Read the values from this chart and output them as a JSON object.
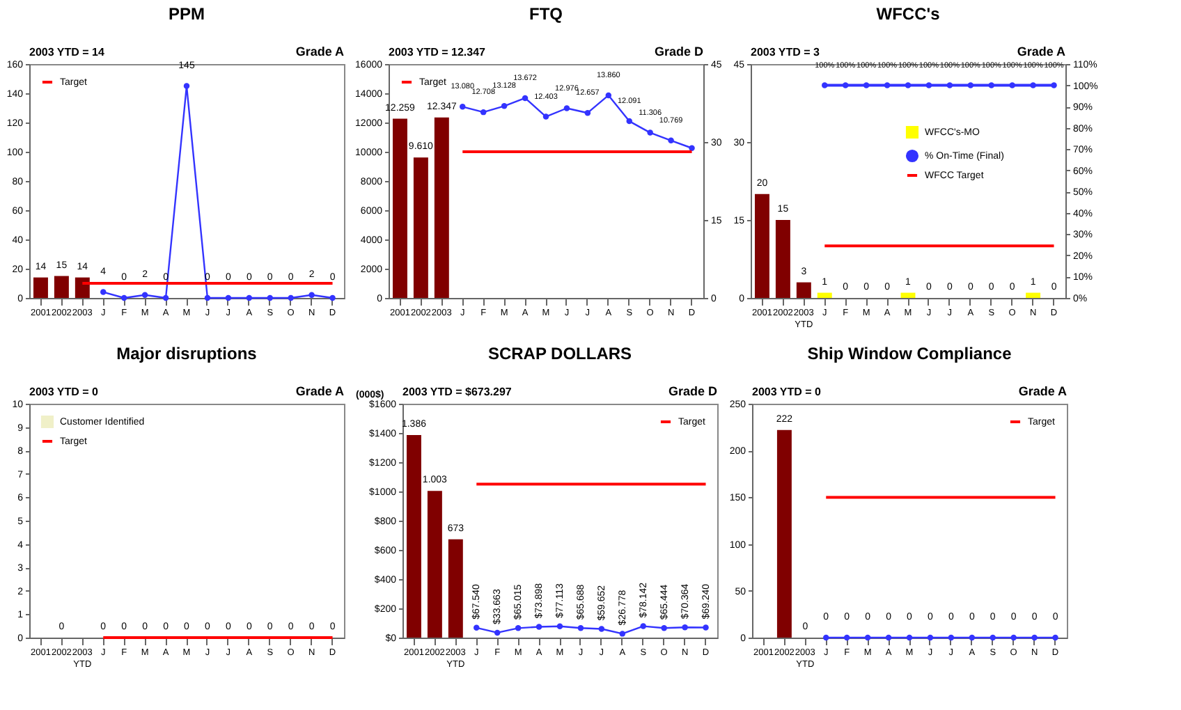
{
  "chart_data": [
    {
      "type": "bar",
      "title": "PPM",
      "annotations": [
        "2003 YTD = 14",
        "Grade A"
      ],
      "categories": [
        "2001",
        "2002",
        "2003",
        "J",
        "F",
        "M",
        "A",
        "M",
        "J",
        "J",
        "A",
        "S",
        "O",
        "N",
        "D"
      ],
      "ylim": [
        0,
        160
      ],
      "yticks": [
        0,
        20,
        40,
        60,
        80,
        100,
        120,
        140,
        160
      ],
      "legend": "top left",
      "series": [
        {
          "type": "bar",
          "color": "#800000",
          "values": [
            14,
            15,
            14,
            null,
            null,
            null,
            null,
            null,
            null,
            null,
            null,
            null,
            null,
            null,
            null
          ],
          "value_labels": [
            "14",
            "15",
            "14",
            null,
            null,
            null,
            null,
            null,
            null,
            null,
            null,
            null,
            null,
            null,
            null
          ]
        },
        {
          "type": "line",
          "color": "#3333ff",
          "marker": "circle",
          "values": [
            null,
            null,
            null,
            4,
            0,
            2,
            0,
            145,
            0,
            0,
            0,
            0,
            0,
            2,
            0
          ],
          "value_labels": [
            null,
            null,
            null,
            "4",
            "0",
            "2",
            "0",
            "145",
            "0",
            "0",
            "0",
            "0",
            "0",
            "2",
            "0"
          ]
        },
        {
          "name": "Target",
          "type": "line",
          "color": "#ff0000",
          "marker": "none",
          "values": [
            null,
            null,
            10,
            10,
            10,
            10,
            10,
            10,
            10,
            10,
            10,
            10,
            10,
            10,
            10
          ]
        }
      ]
    },
    {
      "type": "bar",
      "title": "FTQ",
      "annotations": [
        "2003 YTD = 12.347",
        "Grade D"
      ],
      "categories": [
        "2001",
        "2002",
        "2003",
        "J",
        "F",
        "M",
        "A",
        "M",
        "J",
        "J",
        "A",
        "S",
        "O",
        "N",
        "D"
      ],
      "ylim": [
        0,
        16000
      ],
      "yticks": [
        0,
        2000,
        4000,
        6000,
        8000,
        10000,
        12000,
        14000,
        16000
      ],
      "y2lim": [
        0,
        45
      ],
      "y2ticks": [
        0,
        15,
        30,
        45
      ],
      "legend": "top left",
      "series": [
        {
          "type": "bar",
          "color": "#800000",
          "values": [
            12259,
            9610,
            12347,
            null,
            null,
            null,
            null,
            null,
            null,
            null,
            null,
            null,
            null,
            null,
            null
          ],
          "value_labels": [
            "12.259",
            "9.610",
            "12.347",
            null,
            null,
            null,
            null,
            null,
            null,
            null,
            null,
            null,
            null,
            null,
            null
          ]
        },
        {
          "type": "line",
          "color": "#3333ff",
          "marker": "circle",
          "values": [
            null,
            null,
            null,
            13080,
            12708,
            13128,
            13672,
            12403,
            12976,
            12657,
            13860,
            12091,
            11306,
            10769,
            10250
          ],
          "value_labels": [
            null,
            null,
            null,
            "13.080",
            "12.708",
            "13.128",
            "13.672",
            "12.403",
            "12.976",
            "12.657",
            "13.860",
            "12.091",
            "11.306",
            "10.769",
            null
          ]
        },
        {
          "name": "Target",
          "type": "line",
          "color": "#ff0000",
          "marker": "none",
          "values": [
            null,
            null,
            null,
            10000,
            10000,
            10000,
            10000,
            10000,
            10000,
            10000,
            10000,
            10000,
            10000,
            10000,
            10000
          ]
        }
      ]
    },
    {
      "type": "bar",
      "title": "WFCC's",
      "annotations": [
        "2003 YTD = 3",
        "Grade A"
      ],
      "categories": [
        "2001",
        "2002",
        "2003 YTD",
        "J",
        "F",
        "M",
        "A",
        "M",
        "J",
        "J",
        "A",
        "S",
        "O",
        "N",
        "D"
      ],
      "ylim": [
        0,
        45
      ],
      "yticks": [
        0,
        15,
        30,
        45
      ],
      "y2lim": [
        0,
        110
      ],
      "y2ticks": [
        {
          "value": 0,
          "label": "0%"
        },
        {
          "value": 10,
          "label": "10%"
        },
        {
          "value": 20,
          "label": "20%"
        },
        {
          "value": 30,
          "label": "30%"
        },
        {
          "value": 40,
          "label": "40%"
        },
        {
          "value": 50,
          "label": "50%"
        },
        {
          "value": 60,
          "label": "60%"
        },
        {
          "value": 70,
          "label": "70%"
        },
        {
          "value": 80,
          "label": "80%"
        },
        {
          "value": 90,
          "label": "90%"
        },
        {
          "value": 100,
          "label": "100%"
        },
        {
          "value": 110,
          "label": "110%"
        }
      ],
      "legend": "top right",
      "series": [
        {
          "type": "bar",
          "color": "#800000",
          "values": [
            20,
            15,
            3,
            null,
            null,
            null,
            null,
            null,
            null,
            null,
            null,
            null,
            null,
            null,
            null
          ],
          "value_labels": [
            "20",
            "15",
            "3",
            null,
            null,
            null,
            null,
            null,
            null,
            null,
            null,
            null,
            null,
            null,
            null
          ]
        },
        {
          "name": "WFCC's-MO",
          "type": "bar",
          "color": "#ffff00",
          "values": [
            null,
            null,
            null,
            1,
            0,
            0,
            0,
            1,
            0,
            0,
            0,
            0,
            0,
            1,
            0
          ],
          "value_labels": [
            null,
            null,
            null,
            "1",
            "0",
            "0",
            "0",
            "1",
            "0",
            "0",
            "0",
            "0",
            "0",
            "1",
            "0"
          ]
        },
        {
          "name": "% On-Time (Final)",
          "type": "line",
          "axis": "y2",
          "color": "#3333ff",
          "marker": "circle",
          "values": [
            null,
            null,
            null,
            100,
            100,
            100,
            100,
            100,
            100,
            100,
            100,
            100,
            100,
            100,
            100
          ],
          "value_labels": [
            null,
            null,
            null,
            "100%",
            "100%",
            "100%",
            "100%",
            "100%",
            "100%",
            "100%",
            "100%",
            "100%",
            "100%",
            "100%",
            "100%"
          ]
        },
        {
          "name": "WFCC Target",
          "type": "line",
          "color": "#ff0000",
          "marker": "none",
          "values": [
            null,
            null,
            null,
            10,
            10,
            10,
            10,
            10,
            10,
            10,
            10,
            10,
            10,
            10,
            10
          ]
        }
      ]
    },
    {
      "type": "bar",
      "title": "Major disruptions",
      "annotations": [
        "2003 YTD = 0",
        "Grade A"
      ],
      "categories": [
        "2001",
        "2002",
        "2003 YTD",
        "J",
        "F",
        "M",
        "A",
        "M",
        "J",
        "J",
        "A",
        "S",
        "O",
        "N",
        "D"
      ],
      "ylim": [
        0,
        10
      ],
      "yticks": [
        0,
        1,
        2,
        3,
        4,
        5,
        6,
        7,
        8,
        9,
        10
      ],
      "legend": "top left",
      "series": [
        {
          "name": "Customer Identified",
          "type": "bar",
          "color": "#f0f0c8",
          "values": [
            null,
            0,
            null,
            0,
            0,
            0,
            0,
            0,
            0,
            0,
            0,
            0,
            0,
            0,
            0
          ],
          "value_labels": [
            null,
            "0",
            null,
            "0",
            "0",
            "0",
            "0",
            "0",
            "0",
            "0",
            "0",
            "0",
            "0",
            "0",
            "0"
          ]
        },
        {
          "name": "Target",
          "type": "line",
          "color": "#ff0000",
          "marker": "none",
          "values": [
            null,
            null,
            null,
            0,
            0,
            0,
            0,
            0,
            0,
            0,
            0,
            0,
            0,
            0,
            0
          ]
        }
      ]
    },
    {
      "type": "bar",
      "title": "SCRAP DOLLARS",
      "ylabel": "(000$)",
      "annotations": [
        "2003 YTD = $673.297",
        "Grade D"
      ],
      "categories": [
        "2001",
        "2002",
        "2003 YTD",
        "J",
        "F",
        "M",
        "A",
        "M",
        "J",
        "J",
        "A",
        "S",
        "O",
        "N",
        "D"
      ],
      "ylim": [
        0,
        1600
      ],
      "yticks": [
        {
          "value": 0,
          "label": "$0"
        },
        {
          "value": 200,
          "label": "$200"
        },
        {
          "value": 400,
          "label": "$400"
        },
        {
          "value": 600,
          "label": "$600"
        },
        {
          "value": 800,
          "label": "$800"
        },
        {
          "value": 1000,
          "label": "$1000"
        },
        {
          "value": 1200,
          "label": "$1200"
        },
        {
          "value": 1400,
          "label": "$1400"
        },
        {
          "value": 1600,
          "label": "$1600"
        }
      ],
      "legend": "top right",
      "series": [
        {
          "type": "bar",
          "color": "#800000",
          "values": [
            1386,
            1003,
            673,
            null,
            null,
            null,
            null,
            null,
            null,
            null,
            null,
            null,
            null,
            null,
            null
          ],
          "value_labels": [
            "1.386",
            "1.003",
            "673",
            null,
            null,
            null,
            null,
            null,
            null,
            null,
            null,
            null,
            null,
            null,
            null
          ]
        },
        {
          "type": "line",
          "color": "#3333ff",
          "marker": "circle",
          "values": [
            null,
            null,
            null,
            67.54,
            33.663,
            65.015,
            73.898,
            77.113,
            65.688,
            59.652,
            26.778,
            78.142,
            65.444,
            70.364,
            69.24
          ],
          "value_labels": [
            null,
            null,
            null,
            "$67.540",
            "$33.663",
            "$65.015",
            "$73.898",
            "$77.113",
            "$65.688",
            "$59.652",
            "$26.778",
            "$78.142",
            "$65.444",
            "$70.364",
            "$69.240"
          ]
        },
        {
          "name": "Target",
          "type": "line",
          "color": "#ff0000",
          "marker": "none",
          "values": [
            null,
            null,
            null,
            1050,
            1050,
            1050,
            1050,
            1050,
            1050,
            1050,
            1050,
            1050,
            1050,
            1050,
            1050
          ]
        }
      ]
    },
    {
      "type": "bar",
      "title": "Ship Window Compliance",
      "annotations": [
        "2003 YTD = 0",
        "Grade A"
      ],
      "categories": [
        "2001",
        "2002",
        "2003 YTD",
        "J",
        "F",
        "M",
        "A",
        "M",
        "J",
        "J",
        "A",
        "S",
        "O",
        "N",
        "D"
      ],
      "ylim": [
        0,
        250
      ],
      "yticks": [
        0,
        50,
        100,
        150,
        200,
        250
      ],
      "legend": "top right",
      "series": [
        {
          "type": "bar",
          "color": "#800000",
          "values": [
            null,
            222,
            0,
            null,
            null,
            null,
            null,
            null,
            null,
            null,
            null,
            null,
            null,
            null,
            null
          ],
          "value_labels": [
            null,
            "222",
            "0",
            null,
            null,
            null,
            null,
            null,
            null,
            null,
            null,
            null,
            null,
            null,
            null
          ]
        },
        {
          "type": "line",
          "color": "#3333ff",
          "marker": "circle",
          "values": [
            null,
            null,
            null,
            0,
            0,
            0,
            0,
            0,
            0,
            0,
            0,
            0,
            0,
            0,
            0
          ],
          "value_labels": [
            null,
            null,
            null,
            "0",
            "0",
            "0",
            "0",
            "0",
            "0",
            "0",
            "0",
            "0",
            "0",
            "0",
            "0"
          ]
        },
        {
          "name": "Target",
          "type": "line",
          "color": "#ff0000",
          "marker": "none",
          "values": [
            null,
            null,
            null,
            150,
            150,
            150,
            150,
            150,
            150,
            150,
            150,
            150,
            150,
            150,
            150
          ]
        }
      ]
    }
  ]
}
